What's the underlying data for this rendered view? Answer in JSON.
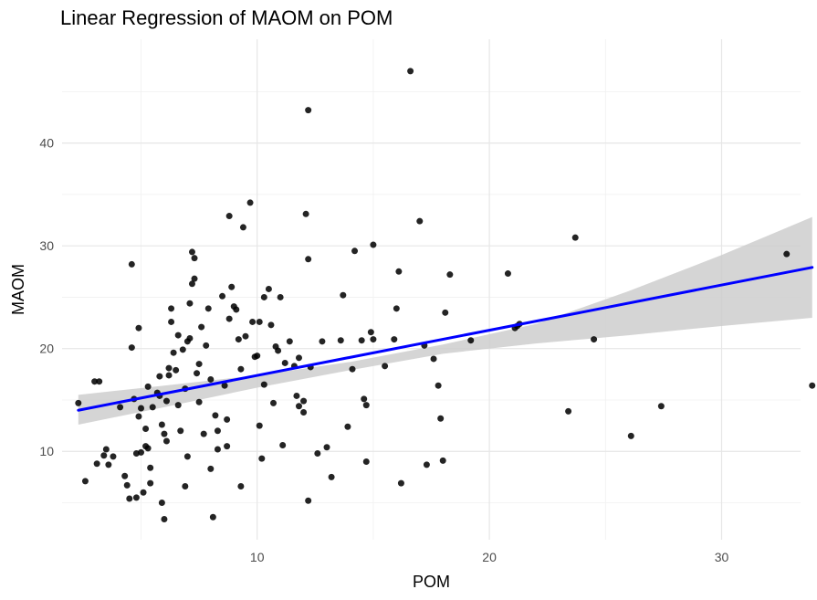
{
  "chart_data": {
    "type": "scatter",
    "title": "Linear Regression of MAOM on POM",
    "xlabel": "POM",
    "ylabel": "MAOM",
    "xlim": [
      1.6,
      33.4
    ],
    "ylim": [
      1.4,
      50.1
    ],
    "x_ticks": [
      10,
      20,
      30
    ],
    "y_ticks": [
      10,
      20,
      30,
      40
    ],
    "x_tick_labels": [
      "10",
      "20",
      "30"
    ],
    "y_tick_labels": [
      "10",
      "20",
      "30",
      "40"
    ],
    "grid": true,
    "legend": "none",
    "colors": {
      "points": "#000000",
      "line": "#0000ff",
      "band": "#cccccc",
      "grid": "#ebebeb"
    },
    "points": [
      {
        "x": 2.3,
        "y": 14.7
      },
      {
        "x": 2.6,
        "y": 7.1
      },
      {
        "x": 3.0,
        "y": 16.8
      },
      {
        "x": 3.1,
        "y": 8.8
      },
      {
        "x": 3.2,
        "y": 16.8
      },
      {
        "x": 3.4,
        "y": 9.6
      },
      {
        "x": 3.5,
        "y": 10.2
      },
      {
        "x": 3.6,
        "y": 8.7
      },
      {
        "x": 3.8,
        "y": 9.5
      },
      {
        "x": 4.1,
        "y": 14.3
      },
      {
        "x": 4.3,
        "y": 7.6
      },
      {
        "x": 4.4,
        "y": 6.7
      },
      {
        "x": 4.5,
        "y": 5.4
      },
      {
        "x": 4.6,
        "y": 20.1
      },
      {
        "x": 4.6,
        "y": 28.2
      },
      {
        "x": 4.7,
        "y": 15.1
      },
      {
        "x": 4.8,
        "y": 9.8
      },
      {
        "x": 4.8,
        "y": 5.5
      },
      {
        "x": 4.9,
        "y": 13.4
      },
      {
        "x": 4.9,
        "y": 22.0
      },
      {
        "x": 5.0,
        "y": 14.2
      },
      {
        "x": 5.0,
        "y": 9.9
      },
      {
        "x": 5.1,
        "y": 6.0
      },
      {
        "x": 5.2,
        "y": 12.2
      },
      {
        "x": 5.2,
        "y": 10.5
      },
      {
        "x": 5.3,
        "y": 16.3
      },
      {
        "x": 5.3,
        "y": 10.3
      },
      {
        "x": 5.4,
        "y": 8.4
      },
      {
        "x": 5.4,
        "y": 6.9
      },
      {
        "x": 5.5,
        "y": 14.3
      },
      {
        "x": 5.7,
        "y": 15.7
      },
      {
        "x": 5.8,
        "y": 17.3
      },
      {
        "x": 5.8,
        "y": 15.4
      },
      {
        "x": 5.9,
        "y": 12.6
      },
      {
        "x": 5.9,
        "y": 5.0
      },
      {
        "x": 6.0,
        "y": 11.7
      },
      {
        "x": 6.0,
        "y": 3.4
      },
      {
        "x": 6.1,
        "y": 14.9
      },
      {
        "x": 6.1,
        "y": 11.0
      },
      {
        "x": 6.2,
        "y": 18.1
      },
      {
        "x": 6.2,
        "y": 17.4
      },
      {
        "x": 6.3,
        "y": 22.6
      },
      {
        "x": 6.3,
        "y": 23.9
      },
      {
        "x": 6.4,
        "y": 19.6
      },
      {
        "x": 6.5,
        "y": 17.9
      },
      {
        "x": 6.6,
        "y": 21.3
      },
      {
        "x": 6.6,
        "y": 14.5
      },
      {
        "x": 6.7,
        "y": 12.0
      },
      {
        "x": 6.8,
        "y": 19.9
      },
      {
        "x": 6.9,
        "y": 16.1
      },
      {
        "x": 6.9,
        "y": 6.6
      },
      {
        "x": 7.0,
        "y": 20.7
      },
      {
        "x": 7.0,
        "y": 9.5
      },
      {
        "x": 7.1,
        "y": 21.0
      },
      {
        "x": 7.1,
        "y": 24.4
      },
      {
        "x": 7.2,
        "y": 26.3
      },
      {
        "x": 7.2,
        "y": 29.4
      },
      {
        "x": 7.3,
        "y": 28.8
      },
      {
        "x": 7.3,
        "y": 26.8
      },
      {
        "x": 7.4,
        "y": 17.6
      },
      {
        "x": 7.5,
        "y": 18.5
      },
      {
        "x": 7.5,
        "y": 14.8
      },
      {
        "x": 7.6,
        "y": 22.1
      },
      {
        "x": 7.7,
        "y": 11.7
      },
      {
        "x": 7.8,
        "y": 20.3
      },
      {
        "x": 7.9,
        "y": 23.9
      },
      {
        "x": 8.0,
        "y": 17.0
      },
      {
        "x": 8.0,
        "y": 8.3
      },
      {
        "x": 8.1,
        "y": 3.6
      },
      {
        "x": 8.2,
        "y": 13.5
      },
      {
        "x": 8.3,
        "y": 12.0
      },
      {
        "x": 8.3,
        "y": 10.2
      },
      {
        "x": 8.5,
        "y": 25.1
      },
      {
        "x": 8.6,
        "y": 16.4
      },
      {
        "x": 8.7,
        "y": 13.1
      },
      {
        "x": 8.7,
        "y": 10.5
      },
      {
        "x": 8.8,
        "y": 22.9
      },
      {
        "x": 8.8,
        "y": 32.9
      },
      {
        "x": 8.9,
        "y": 26.0
      },
      {
        "x": 9.0,
        "y": 24.1
      },
      {
        "x": 9.1,
        "y": 23.8
      },
      {
        "x": 9.2,
        "y": 20.9
      },
      {
        "x": 9.3,
        "y": 6.6
      },
      {
        "x": 9.3,
        "y": 18.0
      },
      {
        "x": 9.4,
        "y": 31.8
      },
      {
        "x": 9.5,
        "y": 21.2
      },
      {
        "x": 9.7,
        "y": 34.2
      },
      {
        "x": 9.8,
        "y": 22.6
      },
      {
        "x": 9.9,
        "y": 19.2
      },
      {
        "x": 10.0,
        "y": 19.3
      },
      {
        "x": 10.1,
        "y": 12.5
      },
      {
        "x": 10.1,
        "y": 22.6
      },
      {
        "x": 10.2,
        "y": 9.3
      },
      {
        "x": 10.3,
        "y": 25.0
      },
      {
        "x": 10.3,
        "y": 16.5
      },
      {
        "x": 10.5,
        "y": 25.8
      },
      {
        "x": 10.6,
        "y": 22.3
      },
      {
        "x": 10.7,
        "y": 14.7
      },
      {
        "x": 10.8,
        "y": 20.2
      },
      {
        "x": 10.9,
        "y": 19.8
      },
      {
        "x": 11.0,
        "y": 25.0
      },
      {
        "x": 11.1,
        "y": 10.6
      },
      {
        "x": 11.2,
        "y": 18.6
      },
      {
        "x": 11.4,
        "y": 20.7
      },
      {
        "x": 11.6,
        "y": 18.3
      },
      {
        "x": 11.7,
        "y": 15.4
      },
      {
        "x": 11.8,
        "y": 14.4
      },
      {
        "x": 11.8,
        "y": 19.1
      },
      {
        "x": 12.0,
        "y": 13.8
      },
      {
        "x": 12.0,
        "y": 14.9
      },
      {
        "x": 12.1,
        "y": 33.1
      },
      {
        "x": 12.2,
        "y": 5.2
      },
      {
        "x": 12.2,
        "y": 28.7
      },
      {
        "x": 12.2,
        "y": 43.2
      },
      {
        "x": 12.3,
        "y": 18.2
      },
      {
        "x": 12.6,
        "y": 9.8
      },
      {
        "x": 12.8,
        "y": 20.7
      },
      {
        "x": 13.0,
        "y": 10.4
      },
      {
        "x": 13.2,
        "y": 7.5
      },
      {
        "x": 13.6,
        "y": 20.8
      },
      {
        "x": 13.7,
        "y": 25.2
      },
      {
        "x": 13.9,
        "y": 12.4
      },
      {
        "x": 14.1,
        "y": 18.0
      },
      {
        "x": 14.2,
        "y": 29.5
      },
      {
        "x": 14.5,
        "y": 20.8
      },
      {
        "x": 14.6,
        "y": 15.1
      },
      {
        "x": 14.7,
        "y": 9.0
      },
      {
        "x": 14.7,
        "y": 14.5
      },
      {
        "x": 14.9,
        "y": 21.6
      },
      {
        "x": 15.0,
        "y": 30.1
      },
      {
        "x": 15.0,
        "y": 20.9
      },
      {
        "x": 15.5,
        "y": 18.3
      },
      {
        "x": 15.9,
        "y": 20.9
      },
      {
        "x": 16.0,
        "y": 23.9
      },
      {
        "x": 16.1,
        "y": 27.5
      },
      {
        "x": 16.2,
        "y": 6.9
      },
      {
        "x": 16.6,
        "y": 47.0
      },
      {
        "x": 17.0,
        "y": 32.4
      },
      {
        "x": 17.2,
        "y": 20.3
      },
      {
        "x": 17.3,
        "y": 8.7
      },
      {
        "x": 17.6,
        "y": 19.0
      },
      {
        "x": 17.8,
        "y": 16.4
      },
      {
        "x": 17.9,
        "y": 13.2
      },
      {
        "x": 18.0,
        "y": 9.1
      },
      {
        "x": 18.1,
        "y": 23.5
      },
      {
        "x": 18.3,
        "y": 27.2
      },
      {
        "x": 19.2,
        "y": 20.8
      },
      {
        "x": 20.8,
        "y": 27.3
      },
      {
        "x": 21.1,
        "y": 22.0
      },
      {
        "x": 21.2,
        "y": 22.2
      },
      {
        "x": 21.3,
        "y": 22.4
      },
      {
        "x": 23.4,
        "y": 13.9
      },
      {
        "x": 23.7,
        "y": 30.8
      },
      {
        "x": 24.5,
        "y": 20.9
      },
      {
        "x": 26.1,
        "y": 11.5
      },
      {
        "x": 27.4,
        "y": 14.4
      },
      {
        "x": 32.8,
        "y": 29.2
      },
      {
        "x": 33.9,
        "y": 16.4
      }
    ],
    "regression": {
      "x_start": 2.3,
      "x_end": 33.9,
      "y_start": 14.0,
      "y_end": 27.9
    },
    "confidence_band": {
      "x": [
        2.3,
        6.0,
        10.0,
        14.0,
        18.0,
        22.0,
        26.0,
        30.0,
        33.9
      ],
      "lower": [
        12.6,
        14.3,
        16.2,
        17.9,
        19.5,
        20.5,
        21.3,
        22.2,
        23.0
      ],
      "upper": [
        15.5,
        16.4,
        17.4,
        18.7,
        20.4,
        22.4,
        25.6,
        29.1,
        32.8
      ]
    }
  }
}
